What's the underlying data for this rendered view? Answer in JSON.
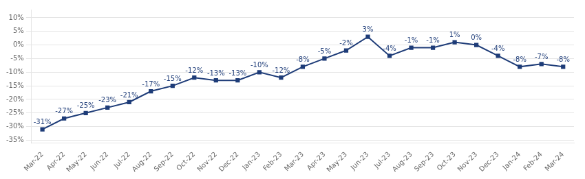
{
  "chart_data": {
    "type": "line",
    "categories": [
      "Mar-22",
      "Apr-22",
      "May-22",
      "Jun-22",
      "Jul-22",
      "Aug-22",
      "Sep-22",
      "Oct-22",
      "Nov-22",
      "Dec-22",
      "Jan-23",
      "Feb-23",
      "Mar-23",
      "Apr-23",
      "May-23",
      "Jun-23",
      "Jul-23",
      "Aug-23",
      "Sep-23",
      "Oct-23",
      "Nov-23",
      "Dec-23",
      "Jan-24",
      "Feb-24",
      "Mar-24"
    ],
    "values": [
      -31,
      -27,
      -25,
      -23,
      -21,
      -17,
      -15,
      -12,
      -13,
      -13,
      -10,
      -12,
      -8,
      -5,
      -2,
      3,
      -4,
      -1,
      -1,
      1,
      0,
      -4,
      -8,
      -7,
      -8
    ],
    "value_labels": [
      "-31%",
      "-27%",
      "-25%",
      "-23%",
      "-21%",
      "-17%",
      "-15%",
      "-12%",
      "-13%",
      "-13%",
      "-10%",
      "-12%",
      "-8%",
      "-5%",
      "-2%",
      "3%",
      "-4%",
      "-1%",
      "-1%",
      "1%",
      "0%",
      "-4%",
      "-8%",
      "-7%",
      "-8%"
    ],
    "data_labels": true,
    "color": "#1e3c78",
    "marker": "square",
    "line_style": "solid",
    "ylim": [
      -36,
      13
    ],
    "yticks": [
      {
        "value": -35,
        "label": "-35%"
      },
      {
        "value": -30,
        "label": "-30%"
      },
      {
        "value": -25,
        "label": "-25%"
      },
      {
        "value": -20,
        "label": "-20%"
      },
      {
        "value": -15,
        "label": "-15%"
      },
      {
        "value": -10,
        "label": "-10%"
      },
      {
        "value": -5,
        "label": "-5%"
      },
      {
        "value": 0,
        "label": "0%"
      },
      {
        "value": 5,
        "label": "5%"
      },
      {
        "value": 10,
        "label": "10%"
      }
    ],
    "grid": true
  }
}
